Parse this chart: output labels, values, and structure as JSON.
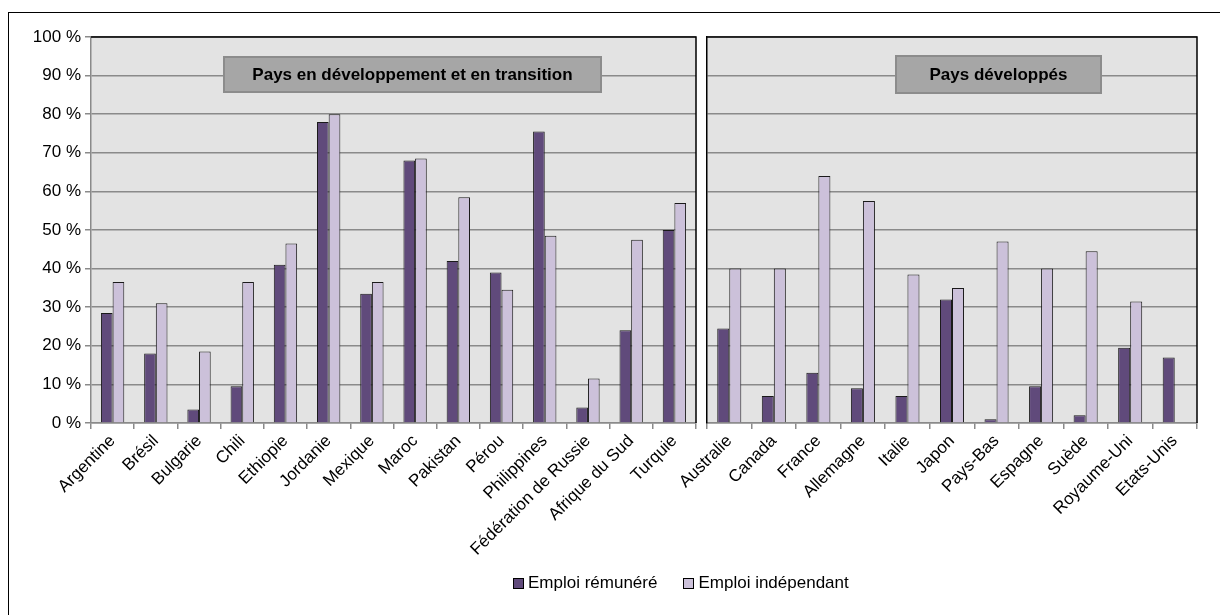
{
  "chart_data": [
    {
      "type": "bar",
      "title": "Pays en développement et en transition",
      "categories": [
        "Argentine",
        "Brésil",
        "Bulgarie",
        "Chili",
        "Ethiopie",
        "Jordanie",
        "Mexique",
        "Maroc",
        "Pakistan",
        "Pérou",
        "Philippines",
        "Fédération de Russie",
        "Afrique du Sud",
        "Turquie"
      ],
      "series": [
        {
          "name": "Emploi rémunéré",
          "color": "#604a7b",
          "values": [
            28.5,
            18,
            3.5,
            9.5,
            41,
            78,
            33.5,
            68,
            42,
            39,
            75.5,
            4,
            24,
            50
          ]
        },
        {
          "name": "Emploi indépendant",
          "color": "#ccc1da",
          "values": [
            36.5,
            31,
            18.5,
            36.5,
            46.5,
            80,
            36.5,
            68.5,
            58.5,
            34.5,
            48.5,
            11.5,
            47.5,
            57
          ]
        }
      ],
      "ylim": [
        0,
        100
      ],
      "yticks": [
        {
          "value": 0,
          "label": "0 %"
        },
        {
          "value": 10,
          "label": "10 %"
        },
        {
          "value": 20,
          "label": "20 %"
        },
        {
          "value": 30,
          "label": "30 %"
        },
        {
          "value": 40,
          "label": "40 %"
        },
        {
          "value": 50,
          "label": "50 %"
        },
        {
          "value": 60,
          "label": "60 %"
        },
        {
          "value": 70,
          "label": "70 %"
        },
        {
          "value": 80,
          "label": "80 %"
        },
        {
          "value": 90,
          "label": "90 %"
        },
        {
          "value": 100,
          "label": "100 %"
        }
      ],
      "grid": "y",
      "legend": "bottom"
    },
    {
      "type": "bar",
      "title": "Pays développés",
      "categories": [
        "Australie",
        "Canada",
        "France",
        "Allemagne",
        "Italie",
        "Japon",
        "Pays-Bas",
        "Espagne",
        "Suède",
        "Royaume-Uni",
        "Etats-Unis"
      ],
      "series": [
        {
          "color": "#604a7b",
          "values": [
            24.5,
            7,
            13,
            9,
            7,
            32,
            1,
            9.5,
            2,
            19.5,
            17
          ]
        },
        {
          "color": "#ccc1da",
          "values": [
            40,
            40,
            64,
            57.5,
            38.5,
            35,
            47,
            40,
            44.5,
            31.5,
            null
          ]
        }
      ],
      "ylim": [
        0,
        100
      ],
      "yticks": [
        0,
        10,
        20,
        30,
        40,
        50,
        60,
        70,
        80,
        90,
        100
      ],
      "grid": "y",
      "tick_labels": "x"
    }
  ]
}
